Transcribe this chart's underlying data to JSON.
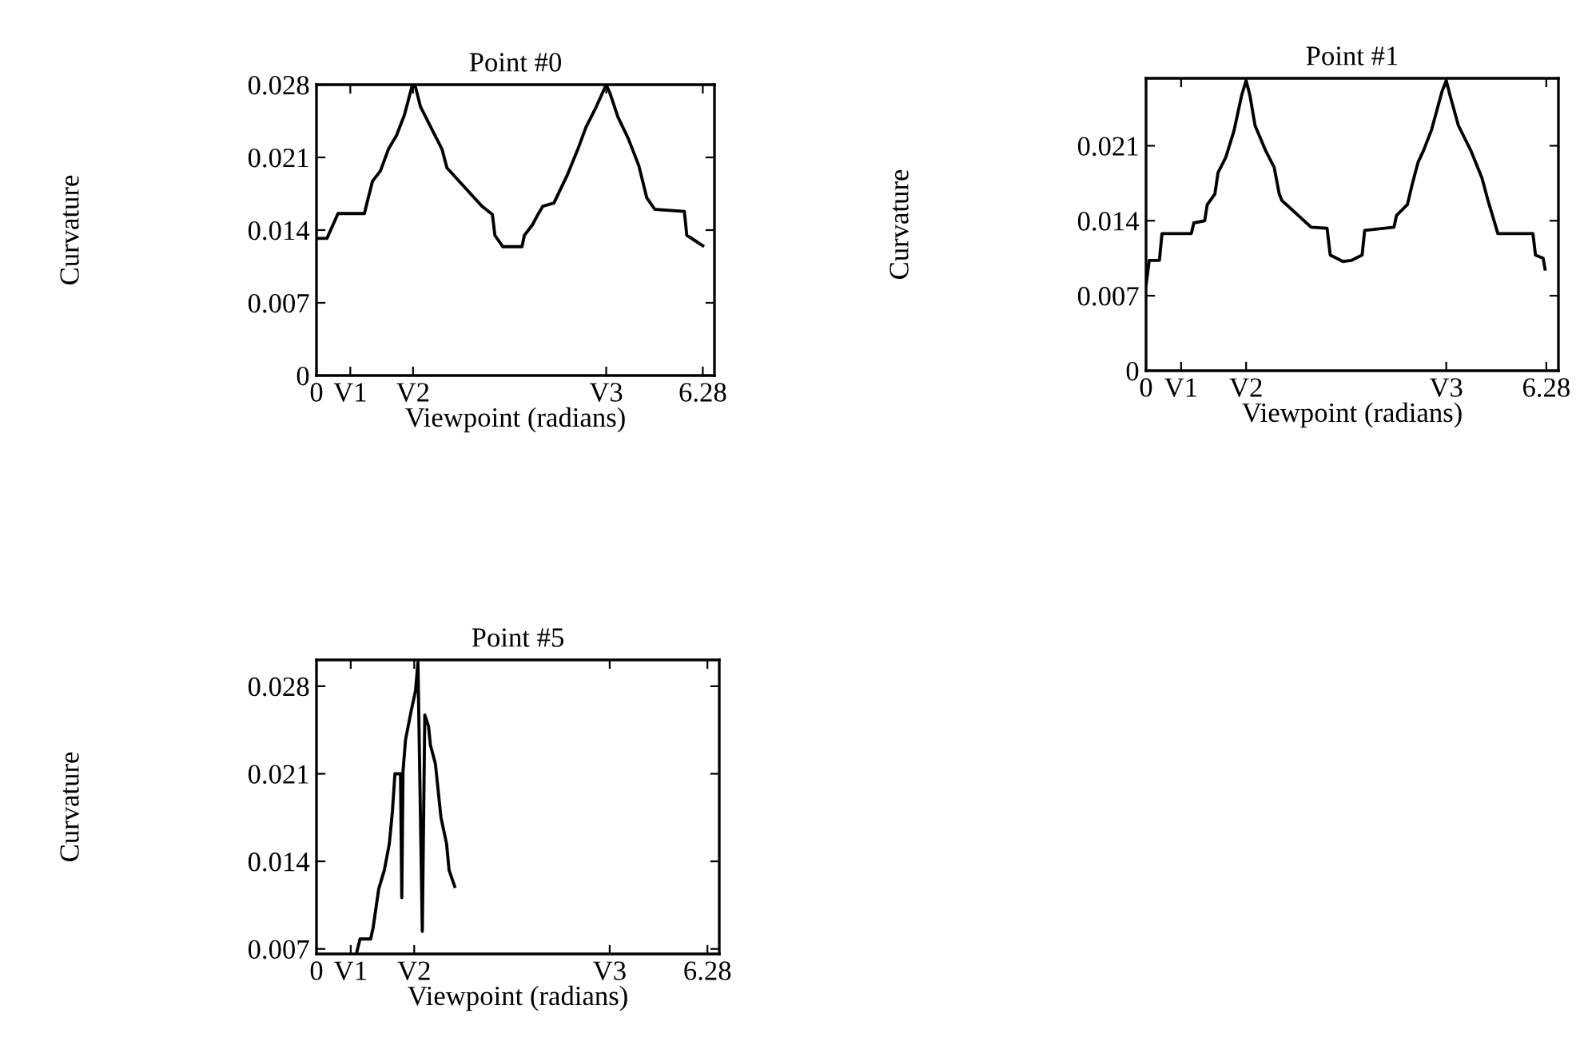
{
  "chart_data": [
    {
      "type": "line",
      "title": "Point #0",
      "xlabel": "Viewpoint (radians)",
      "ylabel": "Curvature",
      "color": "#000000",
      "grid": false,
      "xlim": [
        0,
        6.47
      ],
      "ylim": [
        0,
        0.028
      ],
      "xticks": [
        0,
        {
          "value": 0.55,
          "label": "V1"
        },
        {
          "value": 1.57,
          "label": "V2"
        },
        {
          "value": 4.71,
          "label": "V3"
        },
        6.28
      ],
      "yticks": [
        0,
        0.007,
        0.014,
        0.021,
        0.028
      ],
      "x": [
        0,
        0.17,
        0.35,
        0.78,
        0.82,
        0.91,
        1.04,
        1.17,
        1.3,
        1.43,
        1.56,
        1.6,
        1.69,
        1.86,
        2.04,
        2.12,
        2.69,
        2.86,
        2.9,
        3.03,
        3.34,
        3.38,
        3.51,
        3.6,
        3.68,
        3.86,
        3.94,
        4.07,
        4.25,
        4.38,
        4.55,
        4.71,
        4.77,
        4.9,
        5.07,
        5.24,
        5.37,
        5.5,
        5.98,
        6.02,
        6.15,
        6.28
      ],
      "values": [
        0.0132,
        0.0132,
        0.0156,
        0.0156,
        0.0166,
        0.0187,
        0.0197,
        0.0218,
        0.0231,
        0.0251,
        0.028,
        0.028,
        0.0259,
        0.0239,
        0.0218,
        0.02,
        0.0163,
        0.0155,
        0.0135,
        0.0124,
        0.0124,
        0.0135,
        0.0145,
        0.0155,
        0.0163,
        0.0166,
        0.0176,
        0.0192,
        0.0218,
        0.0239,
        0.0259,
        0.028,
        0.0272,
        0.0249,
        0.0228,
        0.0202,
        0.0171,
        0.016,
        0.0158,
        0.0135,
        0.013,
        0.0125
      ]
    },
    {
      "type": "line",
      "title": "Point #1",
      "xlabel": "Viewpoint (radians)",
      "ylabel": "Curvature",
      "color": "#000000",
      "grid": false,
      "xlim": [
        0,
        6.47
      ],
      "ylim": [
        0,
        0.0273
      ],
      "xticks": [
        0,
        {
          "value": 0.55,
          "label": "V1"
        },
        {
          "value": 1.57,
          "label": "V2"
        },
        {
          "value": 4.71,
          "label": "V3"
        },
        6.28
      ],
      "yticks": [
        0,
        0.007,
        0.014,
        0.021
      ],
      "x": [
        0,
        0.05,
        0.21,
        0.25,
        0.71,
        0.75,
        0.92,
        0.96,
        1.08,
        1.13,
        1.25,
        1.38,
        1.5,
        1.57,
        1.63,
        1.71,
        1.88,
        2.01,
        2.09,
        2.13,
        2.59,
        2.84,
        2.89,
        3.09,
        3.22,
        3.39,
        3.43,
        3.89,
        3.93,
        4.1,
        4.18,
        4.27,
        4.35,
        4.48,
        4.64,
        4.71,
        4.77,
        4.9,
        5.1,
        5.27,
        5.36,
        5.52,
        6.07,
        6.11,
        6.23,
        6.26
      ],
      "values": [
        0.008,
        0.0103,
        0.0103,
        0.0128,
        0.0128,
        0.0138,
        0.014,
        0.0155,
        0.0165,
        0.0185,
        0.0199,
        0.0224,
        0.0257,
        0.0271,
        0.0257,
        0.0229,
        0.0205,
        0.019,
        0.0165,
        0.0159,
        0.0134,
        0.0133,
        0.0108,
        0.0102,
        0.0103,
        0.0108,
        0.0131,
        0.0134,
        0.0145,
        0.0155,
        0.0175,
        0.0195,
        0.0205,
        0.0225,
        0.026,
        0.0271,
        0.0257,
        0.0229,
        0.0205,
        0.018,
        0.016,
        0.0128,
        0.0128,
        0.0108,
        0.0105,
        0.0095
      ]
    },
    {
      "type": "line",
      "title": "Point #5",
      "xlabel": "Viewpoint (radians)",
      "ylabel": "Curvature",
      "color": "#000000",
      "grid": false,
      "xlim": [
        0,
        6.47
      ],
      "ylim": [
        0.0066,
        0.0301
      ],
      "xticks": [
        0,
        {
          "value": 0.55,
          "label": "V1"
        },
        {
          "value": 1.57,
          "label": "V2"
        },
        {
          "value": 4.71,
          "label": "V3"
        },
        6.28
      ],
      "yticks": [
        0.007,
        0.014,
        0.021,
        0.028
      ],
      "x": [
        0.65,
        0.7,
        0.87,
        0.91,
        1.0,
        1.09,
        1.17,
        1.22,
        1.26,
        1.35,
        1.37,
        1.39,
        1.43,
        1.52,
        1.59,
        1.63,
        1.7,
        1.74,
        1.8,
        1.83,
        1.91,
        2.0,
        2.09,
        2.13,
        2.22
      ],
      "values": [
        0.0068,
        0.0078,
        0.0078,
        0.0087,
        0.0118,
        0.0133,
        0.0154,
        0.018,
        0.021,
        0.021,
        0.0111,
        0.0212,
        0.0237,
        0.026,
        0.0276,
        0.0299,
        0.0084,
        0.0257,
        0.0248,
        0.0233,
        0.0218,
        0.0175,
        0.0154,
        0.0133,
        0.012
      ]
    }
  ]
}
